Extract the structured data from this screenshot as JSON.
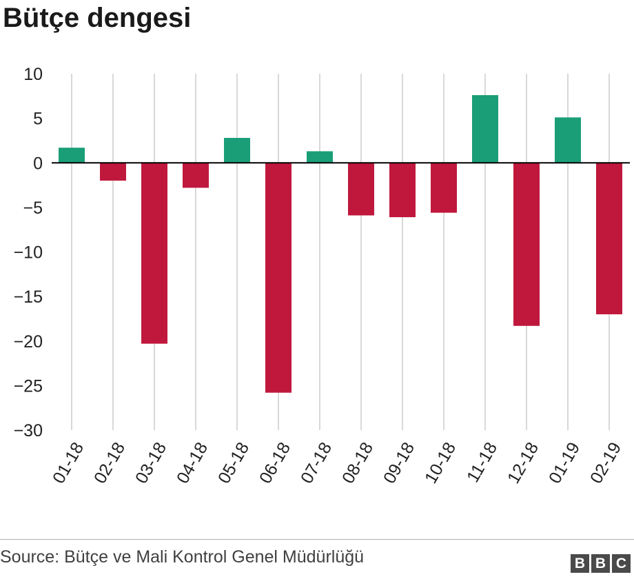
{
  "title": "Bütçe dengesi",
  "source": "Source: Bütçe ve Mali Kontrol Genel Müdürlüğü",
  "logo": {
    "letters": [
      "B",
      "B",
      "C"
    ]
  },
  "colors": {
    "positive": "#1a9e77",
    "negative": "#c0183d",
    "grid": "#cccccc",
    "axis": "#000000"
  },
  "chart_data": {
    "type": "bar",
    "title": "Bütçe dengesi",
    "xlabel": "",
    "ylabel": "",
    "categories": [
      "01-18",
      "02-18",
      "03-18",
      "04-18",
      "05-18",
      "06-18",
      "07-18",
      "08-18",
      "09-18",
      "10-18",
      "11-18",
      "12-18",
      "01-19",
      "02-19"
    ],
    "values": [
      1.7,
      -2.0,
      -20.3,
      -2.8,
      2.8,
      -25.8,
      1.3,
      -5.9,
      -6.1,
      -5.6,
      7.6,
      -18.3,
      5.1,
      -17.0
    ],
    "ylim": [
      -30,
      10
    ],
    "yticks": [
      10,
      5,
      0,
      -5,
      -10,
      -15,
      -20,
      -25,
      -30
    ],
    "ytick_labels": [
      "10",
      "5",
      "0",
      "−5",
      "−10",
      "−15",
      "−20",
      "−25",
      "−30"
    ],
    "grid": "vertical",
    "legend": "none"
  }
}
